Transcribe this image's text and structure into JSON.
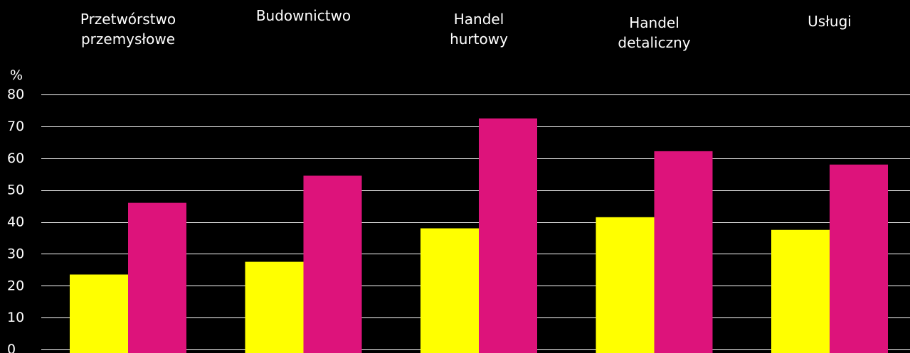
{
  "chart_data": {
    "type": "bar",
    "ylabel": "%",
    "ylim": [
      0,
      80
    ],
    "yticks": [
      "0",
      "10",
      "20",
      "30",
      "40",
      "50",
      "60",
      "70",
      "80"
    ],
    "grid": true,
    "legend": "none",
    "categories": [
      [
        "Przetwórstwo",
        "przemysłowe"
      ],
      [
        "Budownictwo"
      ],
      [
        "Handel",
        "hurtowy"
      ],
      [
        "Handel",
        "detaliczny"
      ],
      [
        "Usługi"
      ]
    ],
    "series": [
      {
        "color": "#ffff00",
        "values": [
          23.5,
          27.5,
          38,
          41.5,
          37.5
        ]
      },
      {
        "color": "#dd137b",
        "values": [
          46,
          54.5,
          72.5,
          62.2,
          58
        ]
      }
    ]
  }
}
